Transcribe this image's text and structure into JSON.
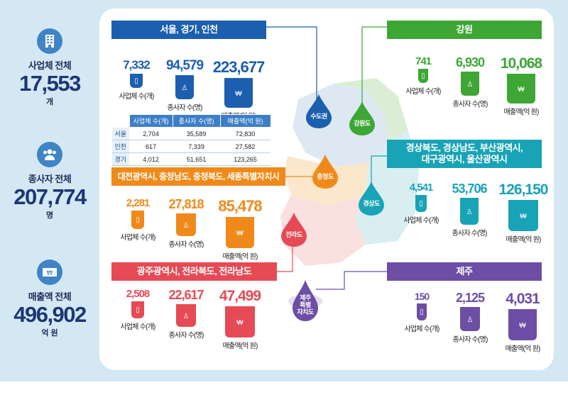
{
  "totals": {
    "businesses": {
      "label": "사업체 전체",
      "value": "17,553",
      "unit": "개",
      "icon": "building-icon"
    },
    "employees": {
      "label": "종사자 전체",
      "value": "207,774",
      "unit": "명",
      "icon": "people-icon"
    },
    "sales": {
      "label": "매출액 전체",
      "value": "496,902",
      "unit": "억 원",
      "icon": "banknote-icon"
    }
  },
  "caption_labels": {
    "businesses": "사업체 수(개)",
    "employees": "종사자 수(명)",
    "sales": "매출액(억 원)"
  },
  "regions": {
    "capital": {
      "title": "서울, 경기, 인천",
      "color": "#1b5fae",
      "drop": "수도권",
      "businesses": "7,332",
      "employees": "94,579",
      "sales": "223,677",
      "table": {
        "headers": [
          "사업체 수(개)",
          "종사자 수(명)",
          "매출액(억 원)"
        ],
        "rows": [
          {
            "name": "서울",
            "values": [
              "2,704",
              "35,589",
              "72,830"
            ]
          },
          {
            "name": "인천",
            "values": [
              "617",
              "7,339",
              "27,582"
            ]
          },
          {
            "name": "경기",
            "values": [
              "4,012",
              "51,651",
              "123,265"
            ]
          }
        ]
      }
    },
    "gangwon": {
      "title": "강원",
      "color": "#3ea635",
      "drop": "강원도",
      "businesses": "741",
      "employees": "6,930",
      "sales": "10,068"
    },
    "chungcheong": {
      "title": "대전광역시, 충청남도, 충청북도, 세종특별자치시",
      "color": "#ef8a1a",
      "drop": "충청도",
      "businesses": "2,281",
      "employees": "27,818",
      "sales": "85,478"
    },
    "gyeongsang": {
      "title_line1": "경상북도, 경상남도, 부산광역시,",
      "title_line2": "대구광역시, 울산광역시",
      "color": "#19a3b6",
      "drop": "경상도",
      "businesses": "4,541",
      "employees": "53,706",
      "sales": "126,150"
    },
    "jeolla": {
      "title": "광주광역시, 전라북도, 전라남도",
      "color": "#e64a55",
      "drop": "전라도",
      "businesses": "2,508",
      "employees": "22,617",
      "sales": "47,499"
    },
    "jeju": {
      "title": "제주",
      "color": "#6c4ea5",
      "drop_line1": "제주",
      "drop_line2": "특별",
      "drop_line3": "자치도",
      "businesses": "150",
      "employees": "2,125",
      "sales": "4,031"
    }
  }
}
